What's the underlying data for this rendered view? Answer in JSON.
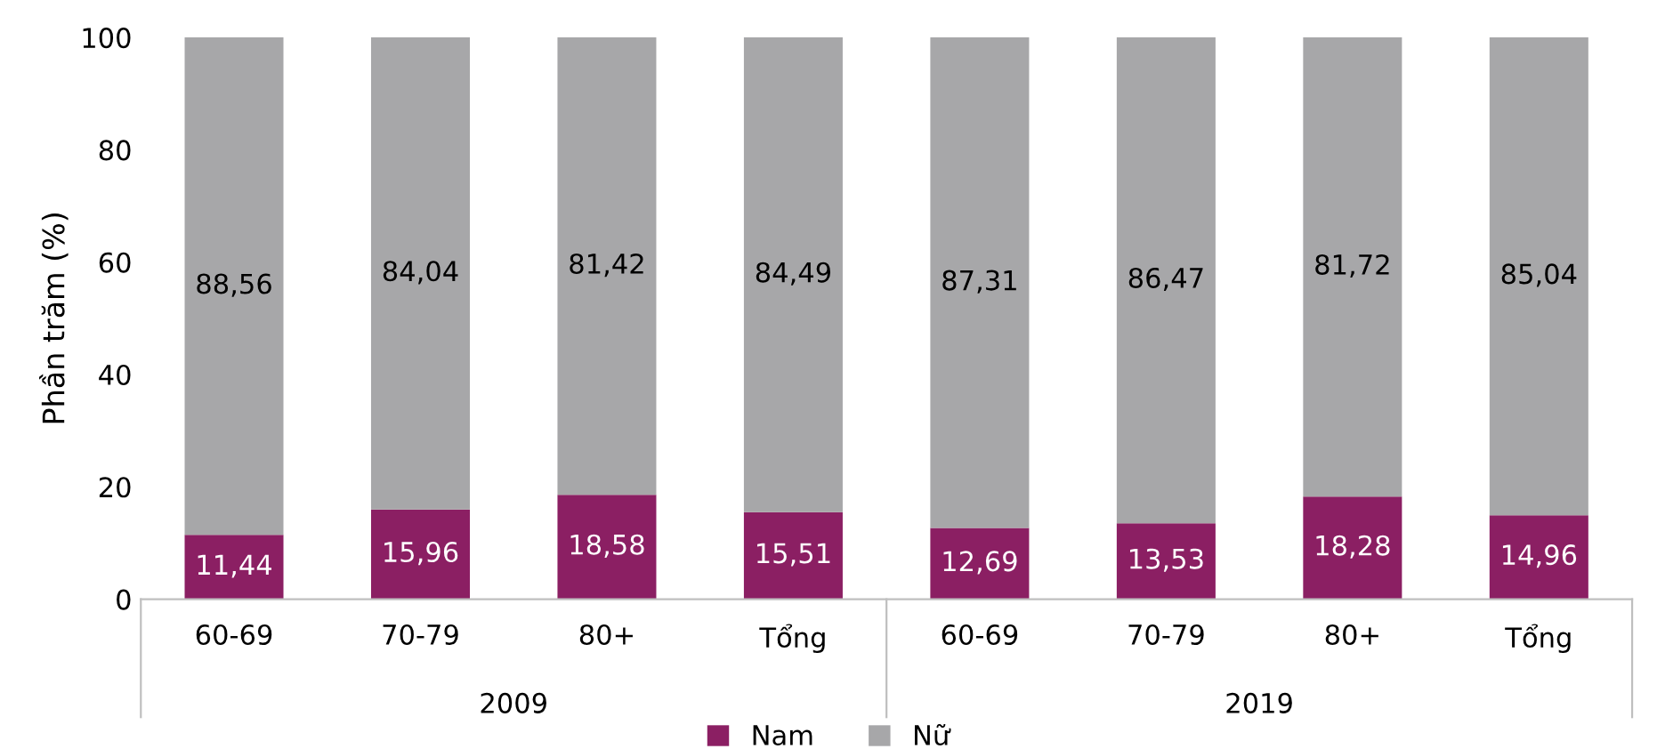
{
  "chart_data": {
    "type": "bar",
    "stacked": true,
    "ylabel": "Phần trăm (%)",
    "categories": [
      "60-69",
      "70-79",
      "80+",
      "Tổng",
      "60-69",
      "70-79",
      "80+",
      "Tổng"
    ],
    "series": [
      {
        "name": "Nam",
        "color": "#8b1f63",
        "values": [
          11.44,
          15.96,
          18.58,
          15.51,
          12.69,
          13.53,
          18.28,
          14.96
        ],
        "value_labels": [
          "11,44",
          "15,96",
          "18,58",
          "15,51",
          "12,69",
          "13,53",
          "18,28",
          "14,96"
        ]
      },
      {
        "name": "Nữ",
        "color": "#a7a7a9",
        "values": [
          88.56,
          84.04,
          81.42,
          84.49,
          87.31,
          86.47,
          81.72,
          85.04
        ],
        "value_labels": [
          "88,56",
          "84,04",
          "81,42",
          "84,49",
          "87,31",
          "86,47",
          "81,72",
          "85,04"
        ]
      }
    ],
    "annotations": [
      "2009",
      "2019"
    ],
    "ylim": [
      0,
      100
    ],
    "yticks": [
      0,
      20,
      40,
      60,
      80,
      100
    ],
    "grid": false,
    "legend": "bottom"
  }
}
